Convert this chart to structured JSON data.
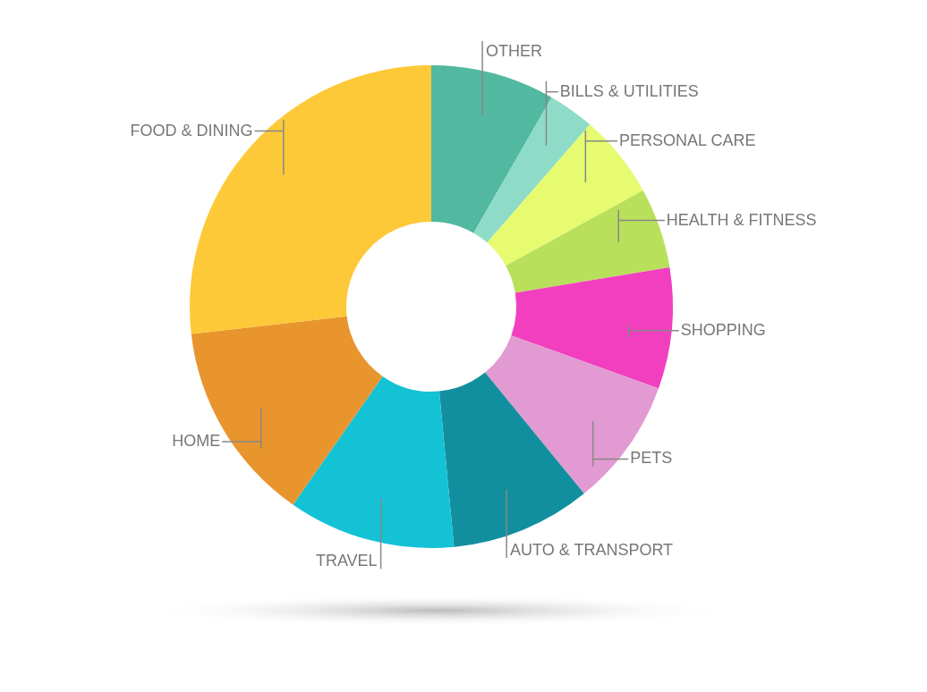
{
  "chart_data": {
    "type": "donut",
    "categories": [
      "OTHER",
      "BILLS & UTILITIES",
      "PERSONAL CARE",
      "HEALTH & FITNESS",
      "SHOPPING",
      "PETS",
      "AUTO & TRANSPORT",
      "TRAVEL",
      "HOME",
      "FOOD & DINING"
    ],
    "values": [
      8.3,
      3.1,
      5.6,
      5.4,
      8.1,
      8.6,
      9.4,
      11.2,
      13.5,
      26.8
    ],
    "colors": [
      "#52b8a0",
      "#8edcc8",
      "#e6fb70",
      "#b8e05a",
      "#f23fbf",
      "#e29ad2",
      "#128f9f",
      "#14c2d6",
      "#e8952e",
      "#fdc938"
    ],
    "legend": false
  }
}
